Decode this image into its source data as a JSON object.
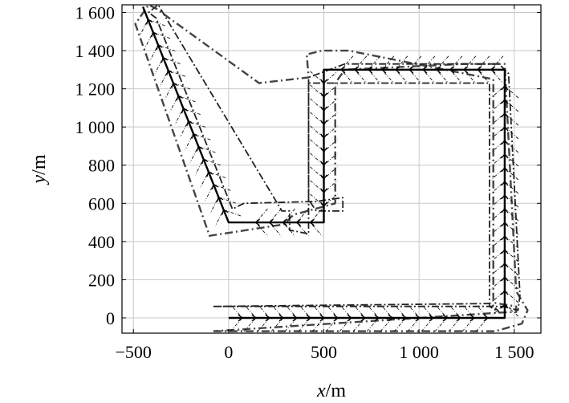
{
  "chart_data": {
    "type": "line",
    "title": "",
    "xlabel": {
      "var": "x",
      "unit": "/m"
    },
    "ylabel": {
      "var": "y",
      "unit": "/m"
    },
    "xlim": [
      -560,
      1640
    ],
    "ylim": [
      -80,
      1640
    ],
    "xticks": [
      {
        "value": -500,
        "label": "−500"
      },
      {
        "value": 0,
        "label": "0"
      },
      {
        "value": 500,
        "label": "500"
      },
      {
        "value": 1000,
        "label": "1 000"
      },
      {
        "value": 1500,
        "label": "1 500"
      }
    ],
    "yticks": [
      {
        "value": 0,
        "label": "0"
      },
      {
        "value": 200,
        "label": "200"
      },
      {
        "value": 400,
        "label": "400"
      },
      {
        "value": 600,
        "label": "600"
      },
      {
        "value": 800,
        "label": "800"
      },
      {
        "value": 1000,
        "label": "1 000"
      },
      {
        "value": 1200,
        "label": "1 200"
      },
      {
        "value": 1400,
        "label": "1 400"
      },
      {
        "value": 1600,
        "label": "1 600"
      }
    ],
    "grid": true,
    "path": {
      "x": [
        0,
        1450,
        1450,
        500,
        500,
        0,
        -450
      ],
      "y": [
        0,
        0,
        1300,
        1300,
        500,
        500,
        1630
      ]
    },
    "corridor": {
      "outer": {
        "x": [
          -80,
          1400,
          1540,
          1570,
          1510,
          1450,
          1230,
          610,
          560,
          560,
          340,
          290,
          -100,
          -490,
          -420,
          -380,
          160,
          420,
          410,
          490,
          630,
          1390,
          1390,
          1510,
          1510,
          1470,
          -80
        ],
        "y": [
          -70,
          -70,
          -30,
          40,
          140,
          1330,
          1330,
          1300,
          1230,
          600,
          540,
          490,
          430,
          1540,
          1640,
          1620,
          1230,
          1260,
          1380,
          1400,
          1400,
          1250,
          80,
          60,
          30,
          30,
          -70
        ]
      },
      "inner": {
        "x": [
          -80,
          1440,
          1520,
          1530,
          1470,
          1420,
          610,
          420,
          420,
          460,
          600,
          600,
          460,
          80,
          20,
          -380,
          -420,
          -370,
          280,
          320,
          320,
          420,
          420,
          1370,
          1370,
          1420,
          1380,
          -80
        ],
        "y": [
          60,
          60,
          40,
          120,
          1280,
          1330,
          1330,
          1260,
          620,
          560,
          560,
          630,
          610,
          600,
          570,
          1570,
          1600,
          1640,
          560,
          560,
          460,
          440,
          1230,
          1230,
          60,
          30,
          75,
          60
        ]
      }
    }
  }
}
